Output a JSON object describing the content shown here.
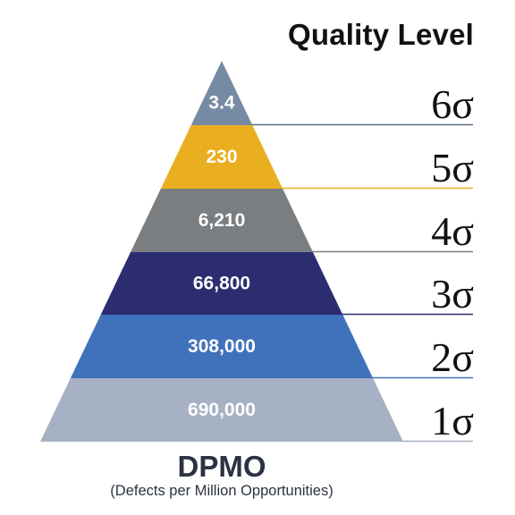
{
  "header": {
    "title": "Quality Level"
  },
  "pyramid": {
    "levels": [
      {
        "sigma": "6σ",
        "value": "3.4",
        "color": "#768aa3",
        "line_color": "#5f7289"
      },
      {
        "sigma": "5σ",
        "value": "230",
        "color": "#eaaf21",
        "line_color": "#eaaf21"
      },
      {
        "sigma": "4σ",
        "value": "6,210",
        "color": "#7b7e80",
        "line_color": "#7b7e80"
      },
      {
        "sigma": "3σ",
        "value": "66,800",
        "color": "#2b2d70",
        "line_color": "#2b2d70"
      },
      {
        "sigma": "2σ",
        "value": "308,000",
        "color": "#4072bb",
        "line_color": "#4072bb"
      },
      {
        "sigma": "1σ",
        "value": "690,000",
        "color": "#a7b1c4",
        "line_color": "#a7b1c4"
      }
    ]
  },
  "footer": {
    "title": "DPMO",
    "subtitle": "(Defects per Million Opportunities)"
  }
}
